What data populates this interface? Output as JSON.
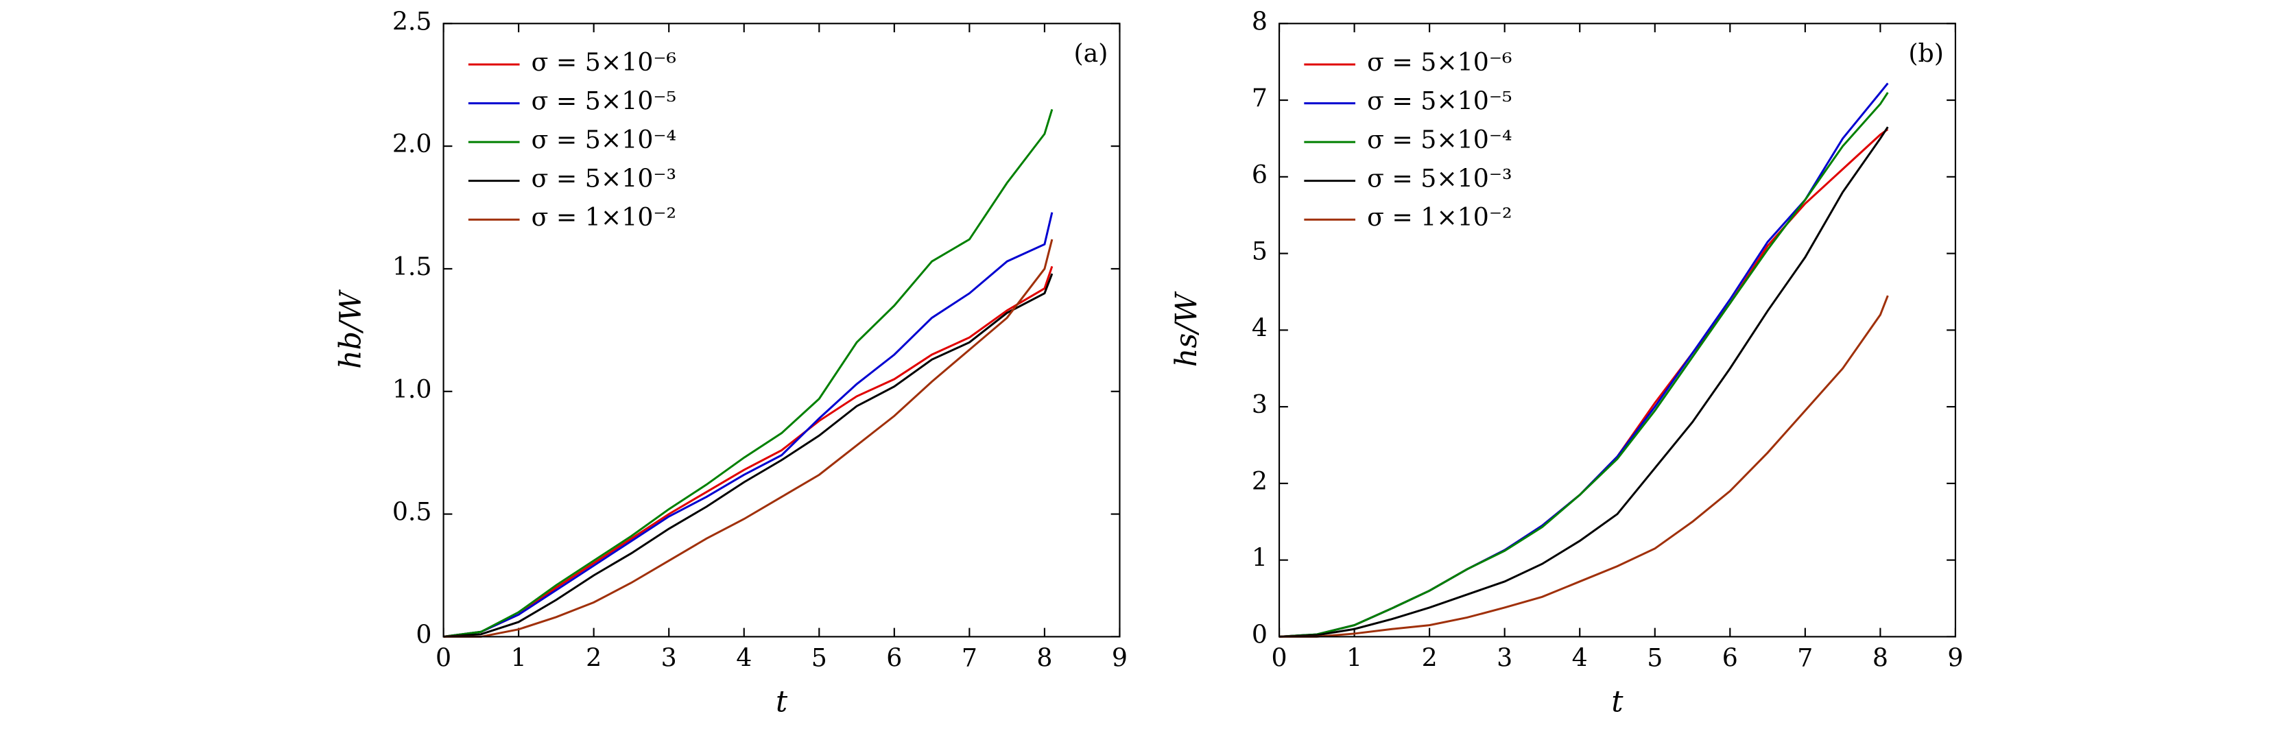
{
  "chart_data": [
    {
      "type": "line",
      "annotation": "(a)",
      "x_label": "t",
      "y_label": "hb/W",
      "x": [
        0,
        0.5,
        1,
        1.5,
        2,
        2.5,
        3,
        3.5,
        4,
        4.5,
        5,
        5.5,
        6,
        6.5,
        7,
        7.5,
        8,
        8.1
      ],
      "xlim": [
        0,
        9
      ],
      "xticks": [
        0,
        1,
        2,
        3,
        4,
        5,
        6,
        7,
        8,
        9
      ],
      "ylim": [
        0,
        2.5
      ],
      "yticks": [
        0,
        0.5,
        {
          "value": 1,
          "label": "1.0"
        },
        1.5,
        {
          "value": 2,
          "label": "2.0"
        },
        2.5
      ],
      "legend": "upper left",
      "series": [
        {
          "name": "σ = 5×10⁻⁶",
          "color": "#e00000",
          "values": [
            0,
            0.02,
            0.09,
            0.2,
            0.3,
            0.4,
            0.5,
            0.59,
            0.68,
            0.76,
            0.88,
            0.98,
            1.05,
            1.15,
            1.22,
            1.33,
            1.42,
            1.51
          ]
        },
        {
          "name": "σ = 5×10⁻⁵",
          "color": "#0000d0",
          "values": [
            0,
            0.02,
            0.09,
            0.19,
            0.29,
            0.39,
            0.49,
            0.57,
            0.66,
            0.74,
            0.89,
            1.03,
            1.15,
            1.3,
            1.4,
            1.53,
            1.6,
            1.73
          ]
        },
        {
          "name": "σ = 5×10⁻⁴",
          "color": "#008000",
          "values": [
            0,
            0.02,
            0.1,
            0.21,
            0.31,
            0.41,
            0.52,
            0.62,
            0.73,
            0.83,
            0.97,
            1.2,
            1.35,
            1.53,
            1.62,
            1.85,
            2.05,
            2.15
          ]
        },
        {
          "name": "σ = 5×10⁻³",
          "color": "#000000",
          "values": [
            0,
            0.01,
            0.06,
            0.15,
            0.25,
            0.34,
            0.44,
            0.53,
            0.63,
            0.72,
            0.82,
            0.94,
            1.02,
            1.13,
            1.2,
            1.32,
            1.4,
            1.48
          ]
        },
        {
          "name": "σ = 1×10⁻²",
          "color": "#a0300a",
          "values": [
            0,
            0,
            0.03,
            0.08,
            0.14,
            0.22,
            0.31,
            0.4,
            0.48,
            0.57,
            0.66,
            0.78,
            0.9,
            1.04,
            1.17,
            1.3,
            1.5,
            1.62
          ]
        }
      ]
    },
    {
      "type": "line",
      "annotation": "(b)",
      "x_label": "t",
      "y_label": "hs/W",
      "x": [
        0,
        0.5,
        1,
        1.5,
        2,
        2.5,
        3,
        3.5,
        4,
        4.5,
        5,
        5.5,
        6,
        6.5,
        7,
        7.5,
        8,
        8.1
      ],
      "xlim": [
        0,
        9
      ],
      "xticks": [
        0,
        1,
        2,
        3,
        4,
        5,
        6,
        7,
        8,
        9
      ],
      "ylim": [
        0,
        8
      ],
      "yticks": [
        0,
        1,
        2,
        3,
        4,
        5,
        6,
        7,
        8
      ],
      "legend": "upper left",
      "series": [
        {
          "name": "σ = 5×10⁻⁶",
          "color": "#e00000",
          "values": [
            0,
            0.03,
            0.15,
            0.37,
            0.6,
            0.88,
            1.13,
            1.45,
            1.85,
            2.35,
            3.05,
            3.7,
            4.35,
            5.1,
            5.65,
            6.1,
            6.55,
            6.62
          ]
        },
        {
          "name": "σ = 5×10⁻⁵",
          "color": "#0000d0",
          "values": [
            0,
            0.03,
            0.15,
            0.37,
            0.6,
            0.88,
            1.13,
            1.45,
            1.85,
            2.35,
            3.0,
            3.7,
            4.4,
            5.15,
            5.7,
            6.5,
            7.1,
            7.22
          ]
        },
        {
          "name": "σ = 5×10⁻⁴",
          "color": "#008000",
          "values": [
            0,
            0.03,
            0.15,
            0.37,
            0.6,
            0.88,
            1.12,
            1.43,
            1.85,
            2.32,
            2.95,
            3.65,
            4.35,
            5.05,
            5.7,
            6.4,
            6.95,
            7.1
          ]
        },
        {
          "name": "σ = 5×10⁻³",
          "color": "#000000",
          "values": [
            0,
            0.02,
            0.1,
            0.23,
            0.38,
            0.55,
            0.72,
            0.95,
            1.25,
            1.6,
            2.2,
            2.8,
            3.5,
            4.25,
            4.95,
            5.8,
            6.5,
            6.65
          ]
        },
        {
          "name": "σ = 1×10⁻²",
          "color": "#a0300a",
          "values": [
            0,
            0,
            0.04,
            0.1,
            0.15,
            0.25,
            0.38,
            0.52,
            0.72,
            0.92,
            1.15,
            1.5,
            1.9,
            2.4,
            2.95,
            3.5,
            4.2,
            4.45
          ]
        }
      ]
    }
  ]
}
